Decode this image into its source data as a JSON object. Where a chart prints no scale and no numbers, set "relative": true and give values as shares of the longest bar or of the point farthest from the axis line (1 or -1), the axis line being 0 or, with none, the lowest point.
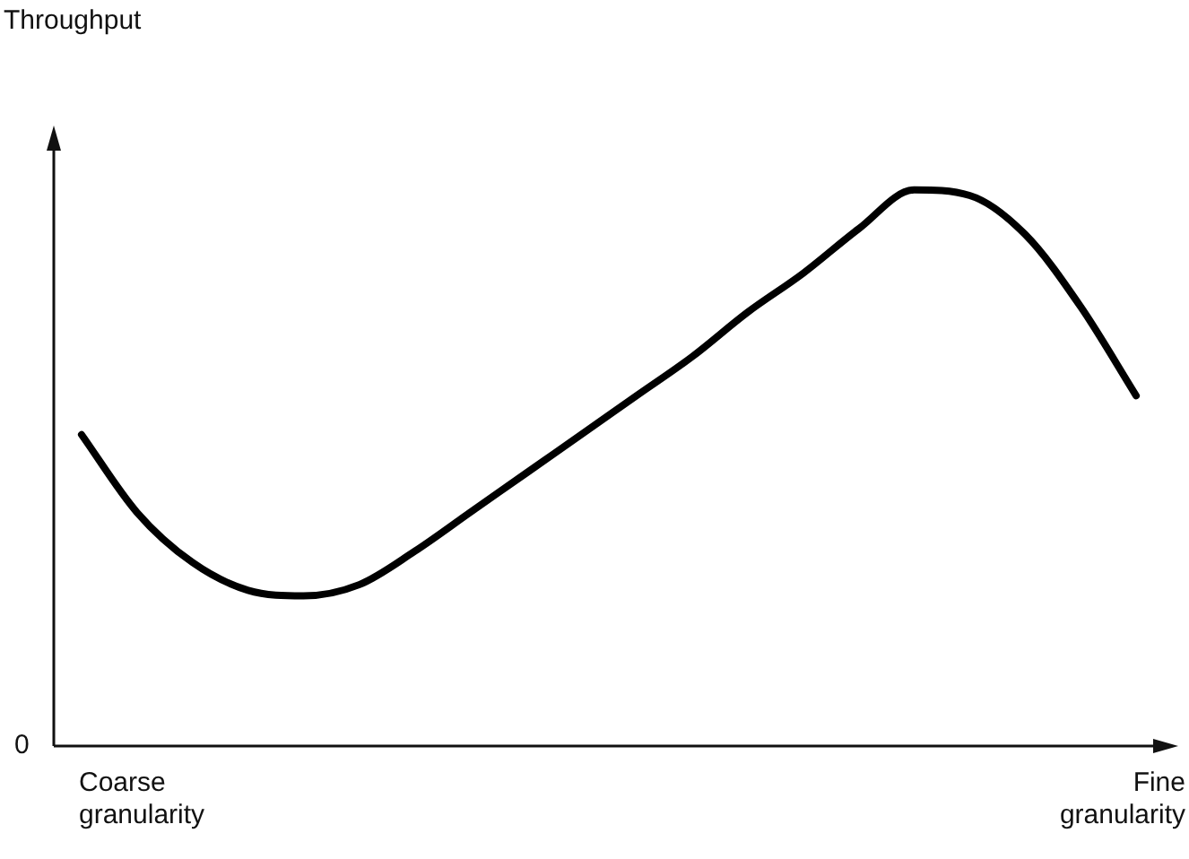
{
  "chart_data": {
    "type": "line",
    "relative": true,
    "categories": [
      null,
      null,
      null,
      null,
      null,
      null,
      null,
      null,
      null,
      null,
      null,
      null,
      null,
      null,
      null,
      null,
      null,
      null,
      null,
      null
    ],
    "series": [
      {
        "color": "#000000",
        "values": [
          0.56,
          0.42,
          0.33,
          0.28,
          0.27,
          0.29,
          0.35,
          0.42,
          0.49,
          0.56,
          0.63,
          0.7,
          0.78,
          0.85,
          0.93,
          1,
          0.99,
          0.92,
          0.79,
          0.63
        ]
      }
    ],
    "annotations": [
      "Throughput",
      "0",
      "Coarse granularity",
      "Fine granularity"
    ],
    "legend": false,
    "marker": "none",
    "line_style": "solid"
  }
}
